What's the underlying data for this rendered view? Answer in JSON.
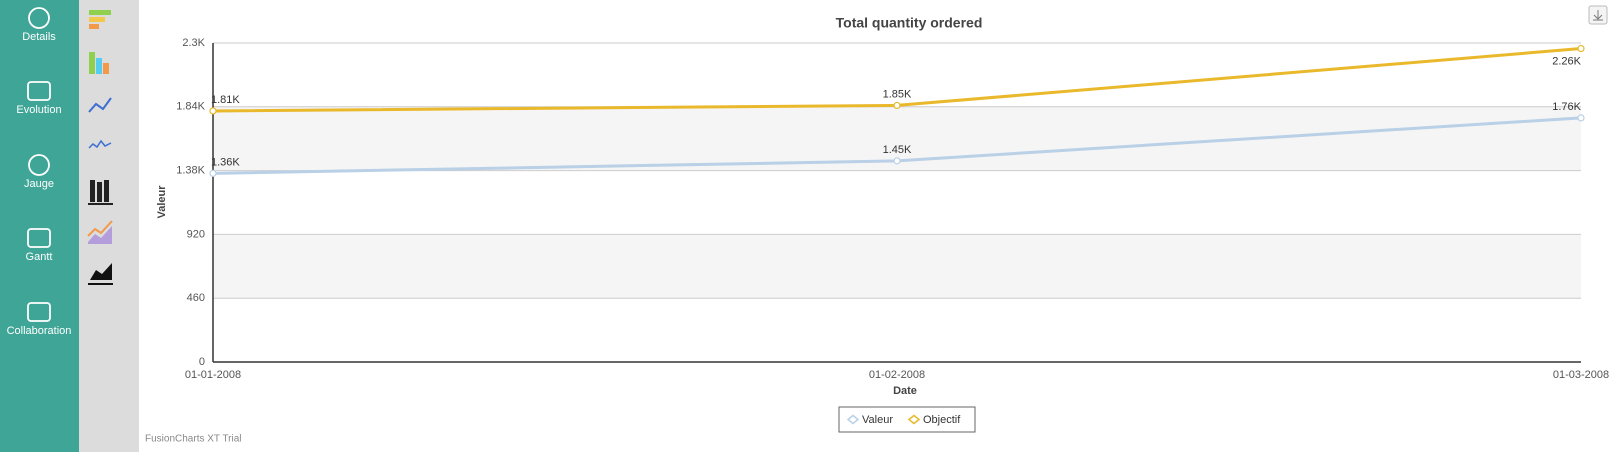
{
  "sidebar": {
    "items": [
      "Details",
      "Evolution",
      "Jauge",
      "Gantt",
      "Collaboration"
    ]
  },
  "watermark": "FusionCharts XT Trial",
  "chart_data": {
    "type": "line",
    "title": "Total quantity ordered",
    "x_label": "Date",
    "y_label": "Valeur",
    "categories": [
      "01-01-2008",
      "01-02-2008",
      "01-03-2008"
    ],
    "series": [
      {
        "name": "Valeur",
        "color": "#b9d0e6",
        "values": [
          1360,
          1450,
          1760
        ],
        "value_labels": [
          "1.36K",
          "1.45K",
          "1.76K"
        ]
      },
      {
        "name": "Objectif",
        "color": "#e9b92b",
        "values": [
          1810,
          1850,
          2260
        ],
        "value_labels": [
          "1.81K",
          "1.85K",
          "2.26K"
        ]
      }
    ],
    "ylim": [
      0,
      2300
    ],
    "yticks": [
      0,
      460,
      920,
      {
        "value": 1380,
        "label": "1.38K"
      },
      {
        "value": 1840,
        "label": "1.84K"
      },
      {
        "value": 2300,
        "label": "2.3K"
      }
    ],
    "grid": true,
    "legend": "bottom"
  }
}
